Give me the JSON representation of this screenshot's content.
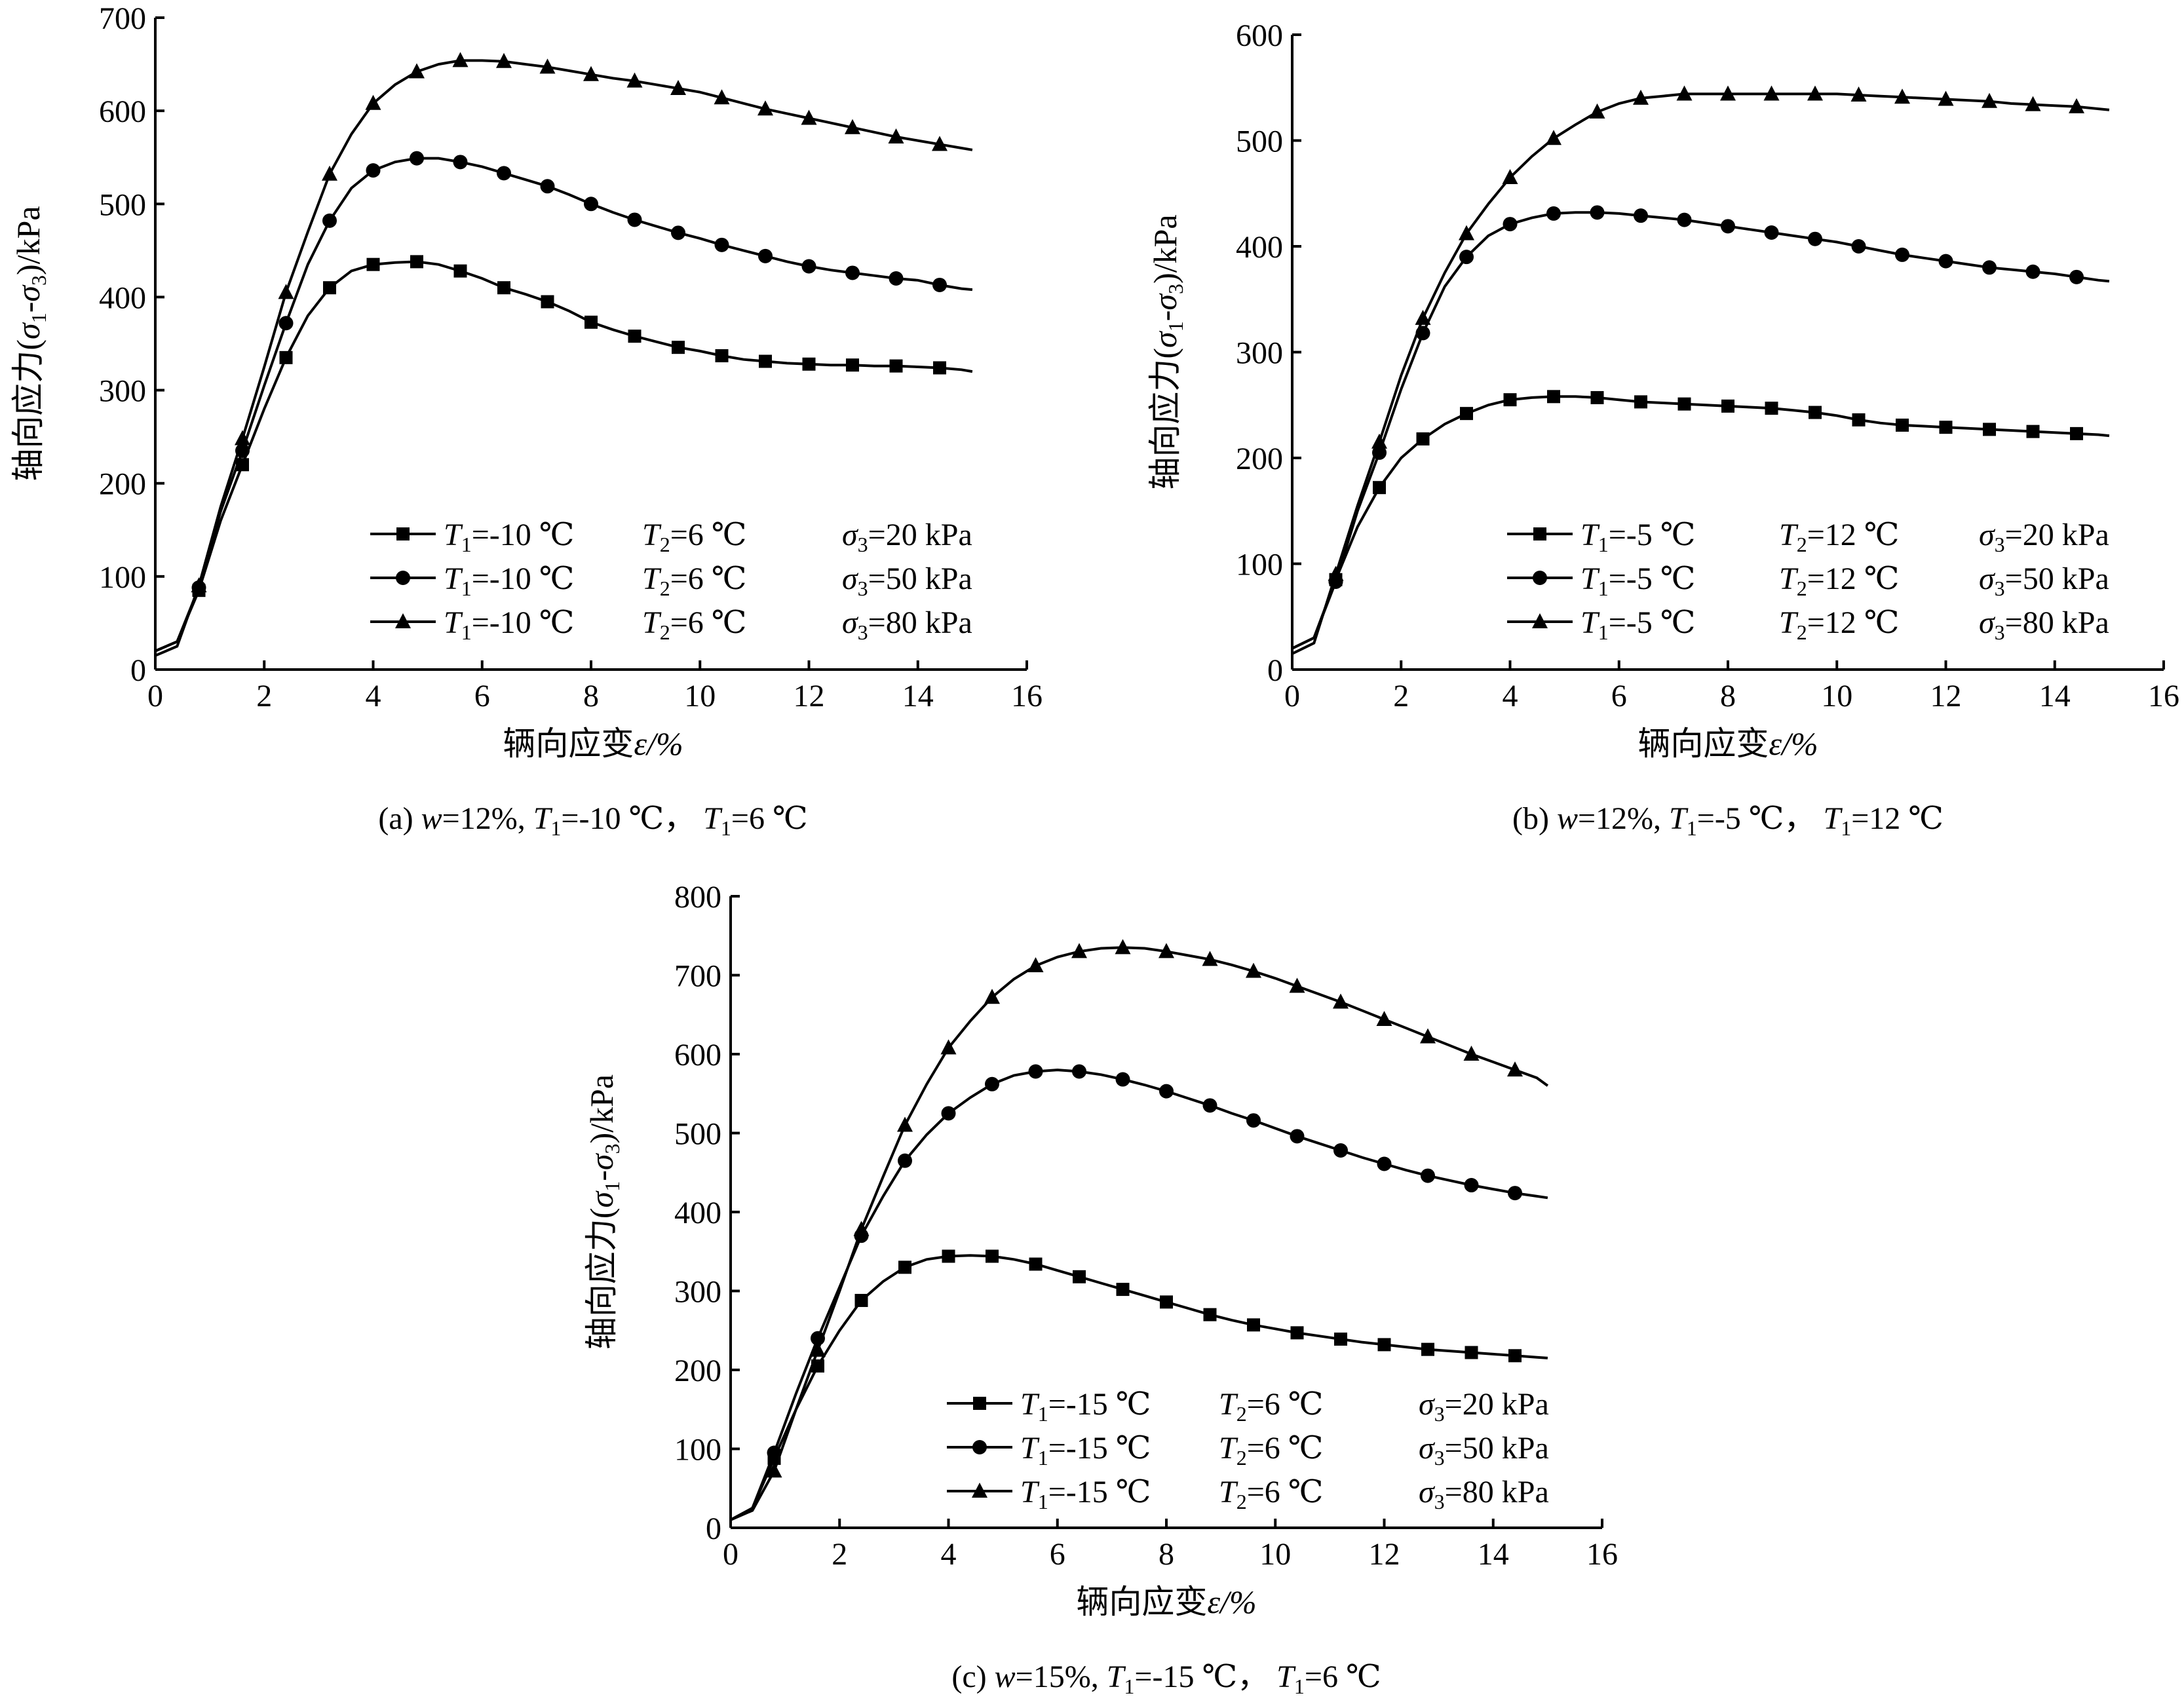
{
  "chart_data": [
    {
      "id": "a",
      "type": "line",
      "caption": {
        "prefix": "(a)",
        "w": "12%",
        "t1": "-10 ℃",
        "t2": "6 ℃"
      },
      "xlabel": "辆向应变",
      "xlabel_symbol": "ε/%",
      "ylabel_prefix": "轴向应力(",
      "ylabel_suffix": ")/kPa",
      "xlim": [
        0,
        16
      ],
      "ylim": [
        0,
        700
      ],
      "xticks": [
        0,
        2,
        4,
        6,
        8,
        10,
        12,
        14,
        16
      ],
      "yticks": [
        0,
        100,
        200,
        300,
        400,
        500,
        600,
        700
      ],
      "series": [
        {
          "marker": "square",
          "legend": {
            "t1": "-10 ℃",
            "t2": "6 ℃",
            "s3": "20 kPa"
          },
          "x": [
            0,
            0.4,
            0.8,
            1.2,
            1.6,
            2.0,
            2.4,
            2.8,
            3.2,
            3.6,
            4.0,
            4.4,
            4.8,
            5.2,
            5.6,
            6.0,
            6.4,
            6.8,
            7.2,
            7.6,
            8.0,
            8.4,
            8.8,
            9.2,
            9.6,
            10.0,
            10.4,
            10.8,
            11.2,
            11.6,
            12.0,
            12.4,
            12.8,
            13.2,
            13.6,
            14.0,
            14.4,
            14.8,
            15.0
          ],
          "y": [
            20,
            30,
            85,
            160,
            220,
            280,
            335,
            380,
            410,
            428,
            435,
            437,
            438,
            435,
            428,
            420,
            410,
            403,
            395,
            385,
            373,
            365,
            358,
            352,
            346,
            342,
            337,
            333,
            331,
            329,
            328,
            327,
            327,
            326,
            326,
            325,
            324,
            322,
            320
          ]
        },
        {
          "marker": "circle",
          "legend": {
            "t1": "-10 ℃",
            "t2": "6 ℃",
            "s3": "50 kPa"
          },
          "x": [
            0,
            0.4,
            0.8,
            1.2,
            1.6,
            2.0,
            2.4,
            2.8,
            3.2,
            3.6,
            4.0,
            4.4,
            4.8,
            5.2,
            5.6,
            6.0,
            6.4,
            6.8,
            7.2,
            7.6,
            8.0,
            8.4,
            8.8,
            9.2,
            9.6,
            10.0,
            10.4,
            10.8,
            11.2,
            11.6,
            12.0,
            12.4,
            12.8,
            13.2,
            13.6,
            14.0,
            14.4,
            14.8,
            15.0
          ],
          "y": [
            20,
            30,
            88,
            170,
            235,
            305,
            372,
            435,
            482,
            517,
            536,
            545,
            549,
            549,
            545,
            540,
            533,
            526,
            519,
            510,
            500,
            491,
            483,
            476,
            469,
            463,
            456,
            450,
            444,
            438,
            433,
            429,
            426,
            423,
            420,
            418,
            413,
            409,
            408
          ]
        },
        {
          "marker": "triangle",
          "legend": {
            "t1": "-10 ℃",
            "t2": "6 ℃",
            "s3": "80 kPa"
          },
          "x": [
            0,
            0.4,
            0.8,
            1.2,
            1.6,
            2.0,
            2.4,
            2.8,
            3.2,
            3.6,
            4.0,
            4.4,
            4.8,
            5.2,
            5.6,
            6.0,
            6.4,
            6.8,
            7.2,
            7.6,
            8.0,
            8.4,
            8.8,
            9.2,
            9.6,
            10.0,
            10.4,
            10.8,
            11.2,
            11.6,
            12.0,
            12.4,
            12.8,
            13.2,
            13.6,
            14.0,
            14.4,
            14.8,
            15.0
          ],
          "y": [
            15,
            25,
            90,
            175,
            248,
            325,
            405,
            470,
            532,
            575,
            608,
            628,
            642,
            650,
            654,
            654,
            653,
            650,
            647,
            643,
            639,
            635,
            632,
            628,
            624,
            620,
            614,
            608,
            602,
            597,
            592,
            587,
            582,
            577,
            572,
            568,
            564,
            560,
            558
          ]
        }
      ]
    },
    {
      "id": "b",
      "type": "line",
      "caption": {
        "prefix": "(b)",
        "w": "12%",
        "t1": "-5 ℃",
        "t2": "12 ℃"
      },
      "xlabel": "辆向应变",
      "xlabel_symbol": "ε/%",
      "ylabel_prefix": "轴向应力(",
      "ylabel_suffix": ")/kPa",
      "xlim": [
        0,
        16
      ],
      "ylim": [
        0,
        600
      ],
      "xticks": [
        0,
        2,
        4,
        6,
        8,
        10,
        12,
        14,
        16
      ],
      "yticks": [
        0,
        100,
        200,
        300,
        400,
        500,
        600
      ],
      "series": [
        {
          "marker": "square",
          "legend": {
            "t1": "-5 ℃",
            "t2": "12 ℃",
            "s3": "20 kPa"
          },
          "x": [
            0,
            0.4,
            0.8,
            1.2,
            1.6,
            2.0,
            2.4,
            2.8,
            3.2,
            3.6,
            4.0,
            4.4,
            4.8,
            5.2,
            5.6,
            6.0,
            6.4,
            6.8,
            7.2,
            7.6,
            8.0,
            8.4,
            8.8,
            9.2,
            9.6,
            10.0,
            10.4,
            10.8,
            11.2,
            11.6,
            12.0,
            12.4,
            12.8,
            13.2,
            13.6,
            14.0,
            14.4,
            14.8,
            15.0
          ],
          "y": [
            20,
            30,
            85,
            135,
            172,
            200,
            218,
            232,
            242,
            250,
            255,
            257,
            258,
            258,
            257,
            255,
            253,
            252,
            251,
            250,
            249,
            248,
            247,
            245,
            243,
            240,
            236,
            233,
            231,
            230,
            229,
            228,
            227,
            226,
            225,
            224,
            223,
            222,
            221
          ]
        },
        {
          "marker": "circle",
          "legend": {
            "t1": "-5 ℃",
            "t2": "12 ℃",
            "s3": "50 kPa"
          },
          "x": [
            0,
            0.4,
            0.8,
            1.2,
            1.6,
            2.0,
            2.4,
            2.8,
            3.2,
            3.6,
            4.0,
            4.4,
            4.8,
            5.2,
            5.6,
            6.0,
            6.4,
            6.8,
            7.2,
            7.6,
            8.0,
            8.4,
            8.8,
            9.2,
            9.6,
            10.0,
            10.4,
            10.8,
            11.2,
            11.6,
            12.0,
            12.4,
            12.8,
            13.2,
            13.6,
            14.0,
            14.4,
            14.8,
            15.0
          ],
          "y": [
            20,
            30,
            83,
            150,
            205,
            265,
            318,
            362,
            390,
            410,
            421,
            427,
            431,
            432,
            432,
            431,
            429,
            427,
            425,
            422,
            419,
            416,
            413,
            410,
            407,
            404,
            400,
            396,
            392,
            389,
            386,
            383,
            380,
            378,
            376,
            374,
            371,
            368,
            367
          ]
        },
        {
          "marker": "triangle",
          "legend": {
            "t1": "-5 ℃",
            "t2": "12 ℃",
            "s3": "80 kPa"
          },
          "x": [
            0,
            0.4,
            0.8,
            1.2,
            1.6,
            2.0,
            2.4,
            2.8,
            3.2,
            3.6,
            4.0,
            4.4,
            4.8,
            5.2,
            5.6,
            6.0,
            6.4,
            6.8,
            7.2,
            7.6,
            8.0,
            8.4,
            8.8,
            9.2,
            9.6,
            10.0,
            10.4,
            10.8,
            11.2,
            11.6,
            12.0,
            12.4,
            12.8,
            13.2,
            13.6,
            14.0,
            14.4,
            14.8,
            15.0
          ],
          "y": [
            15,
            25,
            90,
            155,
            215,
            278,
            332,
            375,
            412,
            440,
            465,
            485,
            502,
            515,
            527,
            535,
            540,
            542,
            544,
            544,
            544,
            544,
            544,
            544,
            544,
            544,
            543,
            542,
            541,
            540,
            539,
            538,
            537,
            535,
            534,
            533,
            532,
            530,
            529
          ]
        }
      ]
    },
    {
      "id": "c",
      "type": "line",
      "caption": {
        "prefix": "(c)",
        "w": "15%",
        "t1": "-15 ℃",
        "t2": "6 ℃"
      },
      "xlabel": "辆向应变",
      "xlabel_symbol": "ε/%",
      "ylabel_prefix": "轴向应力(",
      "ylabel_suffix": ")/kPa",
      "xlim": [
        0,
        16
      ],
      "ylim": [
        0,
        800
      ],
      "xticks": [
        0,
        2,
        4,
        6,
        8,
        10,
        12,
        14,
        16
      ],
      "yticks": [
        0,
        100,
        200,
        300,
        400,
        500,
        600,
        700,
        800
      ],
      "series": [
        {
          "marker": "square",
          "legend": {
            "t1": "-15 ℃",
            "t2": "6 ℃",
            "s3": "20 kPa"
          },
          "x": [
            0,
            0.4,
            0.8,
            1.2,
            1.6,
            2.0,
            2.4,
            2.8,
            3.2,
            3.6,
            4.0,
            4.4,
            4.8,
            5.2,
            5.6,
            6.0,
            6.4,
            6.8,
            7.2,
            7.6,
            8.0,
            8.4,
            8.8,
            9.2,
            9.6,
            10.0,
            10.4,
            10.8,
            11.2,
            11.6,
            12.0,
            12.4,
            12.8,
            13.2,
            13.6,
            14.0,
            14.4,
            14.8,
            15.0
          ],
          "y": [
            10,
            25,
            88,
            150,
            205,
            250,
            288,
            312,
            330,
            340,
            344,
            345,
            344,
            340,
            334,
            326,
            318,
            310,
            302,
            294,
            286,
            278,
            270,
            263,
            257,
            252,
            247,
            243,
            239,
            235,
            232,
            229,
            226,
            224,
            222,
            220,
            218,
            216,
            215
          ]
        },
        {
          "marker": "circle",
          "legend": {
            "t1": "-15 ℃",
            "t2": "6 ℃",
            "s3": "50 kPa"
          },
          "x": [
            0,
            0.4,
            0.8,
            1.2,
            1.6,
            2.0,
            2.4,
            2.8,
            3.2,
            3.6,
            4.0,
            4.4,
            4.8,
            5.2,
            5.6,
            6.0,
            6.4,
            6.8,
            7.2,
            7.6,
            8.0,
            8.4,
            8.8,
            9.2,
            9.6,
            10.0,
            10.4,
            10.8,
            11.2,
            11.6,
            12.0,
            12.4,
            12.8,
            13.2,
            13.6,
            14.0,
            14.4,
            14.8,
            15.0
          ],
          "y": [
            10,
            25,
            95,
            170,
            240,
            305,
            370,
            420,
            465,
            498,
            525,
            545,
            562,
            573,
            578,
            580,
            578,
            574,
            568,
            561,
            553,
            544,
            535,
            525,
            516,
            506,
            496,
            487,
            478,
            469,
            461,
            453,
            446,
            440,
            434,
            429,
            424,
            420,
            418
          ]
        },
        {
          "marker": "triangle",
          "legend": {
            "t1": "-15 ℃",
            "t2": "6 ℃",
            "s3": "80 kPa"
          },
          "x": [
            0,
            0.4,
            0.8,
            1.2,
            1.6,
            2.0,
            2.4,
            2.8,
            3.2,
            3.6,
            4.0,
            4.4,
            4.8,
            5.2,
            5.6,
            6.0,
            6.4,
            6.8,
            7.2,
            7.6,
            8.0,
            8.4,
            8.8,
            9.2,
            9.6,
            10.0,
            10.4,
            10.8,
            11.2,
            11.6,
            12.0,
            12.4,
            12.8,
            13.2,
            13.6,
            14.0,
            14.4,
            14.8,
            15.0
          ],
          "y": [
            10,
            22,
            72,
            150,
            225,
            300,
            378,
            445,
            510,
            562,
            608,
            642,
            672,
            695,
            712,
            723,
            730,
            734,
            735,
            734,
            730,
            725,
            720,
            713,
            705,
            696,
            686,
            676,
            666,
            655,
            644,
            633,
            622,
            611,
            600,
            590,
            580,
            570,
            560
          ]
        }
      ]
    }
  ]
}
